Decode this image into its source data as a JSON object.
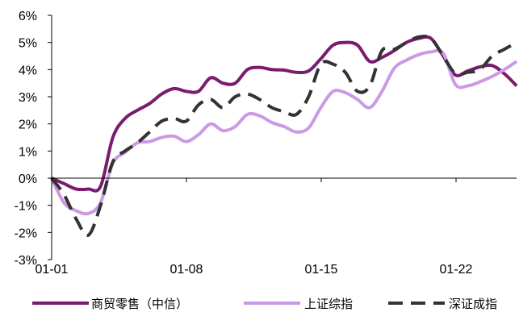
{
  "chart_data": {
    "type": "line",
    "title": "",
    "xlabel": "",
    "ylabel": "",
    "x_start": "01-01",
    "x_end": "01-25",
    "x_tick_labels": [
      "01-01",
      "01-08",
      "01-15",
      "01-22"
    ],
    "y_tick_labels": [
      "6%",
      "5%",
      "4%",
      "3%",
      "2%",
      "1%",
      "0%",
      "-1%",
      "-2%",
      "-3%"
    ],
    "ylim": [
      -3,
      6
    ],
    "y_unit": "%",
    "grid": false,
    "legend_position": "bottom",
    "series": [
      {
        "name": "商贸零售（中信）",
        "color": "#7B1B6E",
        "style": "solid",
        "points": [
          [
            "01-01",
            0.0
          ],
          [
            "01-01",
            -0.2
          ],
          [
            "01-02",
            -0.4
          ],
          [
            "01-02",
            -0.4
          ],
          [
            "01-03",
            -0.3
          ],
          [
            "01-03",
            1.5
          ],
          [
            "01-04",
            2.2
          ],
          [
            "01-04",
            2.5
          ],
          [
            "01-05",
            2.75
          ],
          [
            "01-06",
            3.1
          ],
          [
            "01-06",
            3.3
          ],
          [
            "01-07",
            3.2
          ],
          [
            "01-07",
            3.2
          ],
          [
            "01-08",
            3.7
          ],
          [
            "01-08",
            3.5
          ],
          [
            "01-09",
            3.5
          ],
          [
            "01-09",
            4.0
          ],
          [
            "01-10",
            4.08
          ],
          [
            "01-11",
            4.0
          ],
          [
            "01-11",
            3.98
          ],
          [
            "01-12",
            3.9
          ],
          [
            "01-13",
            3.95
          ],
          [
            "01-13",
            4.4
          ],
          [
            "01-14",
            4.9
          ],
          [
            "01-14",
            5.0
          ],
          [
            "01-15",
            4.9
          ],
          [
            "01-16",
            4.3
          ],
          [
            "01-17",
            4.45
          ],
          [
            "01-17",
            4.7
          ],
          [
            "01-18",
            5.0
          ],
          [
            "01-19",
            5.15
          ],
          [
            "01-20",
            5.15
          ],
          [
            "01-20",
            4.5
          ],
          [
            "01-21",
            3.8
          ],
          [
            "01-22",
            3.95
          ],
          [
            "01-22",
            4.1
          ],
          [
            "01-23",
            4.15
          ],
          [
            "01-23",
            3.85
          ],
          [
            "01-24",
            3.4
          ]
        ]
      },
      {
        "name": "上证综指",
        "color": "#CC99E6",
        "style": "solid",
        "points": [
          [
            "01-01",
            0.0
          ],
          [
            "01-01",
            -0.9
          ],
          [
            "01-02",
            -1.2
          ],
          [
            "01-02",
            -1.3
          ],
          [
            "01-03",
            -0.9
          ],
          [
            "01-03",
            0.55
          ],
          [
            "01-04",
            0.95
          ],
          [
            "01-04",
            1.3
          ],
          [
            "01-05",
            1.35
          ],
          [
            "01-06",
            1.5
          ],
          [
            "01-06",
            1.55
          ],
          [
            "01-07",
            1.35
          ],
          [
            "01-07",
            1.6
          ],
          [
            "01-08",
            2.0
          ],
          [
            "01-08",
            1.75
          ],
          [
            "01-09",
            1.9
          ],
          [
            "01-09",
            2.35
          ],
          [
            "01-10",
            2.3
          ],
          [
            "01-11",
            2.05
          ],
          [
            "01-11",
            1.9
          ],
          [
            "01-12",
            1.7
          ],
          [
            "01-13",
            1.85
          ],
          [
            "01-13",
            2.6
          ],
          [
            "01-14",
            3.2
          ],
          [
            "01-14",
            3.15
          ],
          [
            "01-15",
            2.9
          ],
          [
            "01-16",
            2.6
          ],
          [
            "01-17",
            3.2
          ],
          [
            "01-17",
            4.05
          ],
          [
            "01-18",
            4.35
          ],
          [
            "01-19",
            4.55
          ],
          [
            "01-20",
            4.65
          ],
          [
            "01-20",
            4.6
          ],
          [
            "01-21",
            3.45
          ],
          [
            "01-22",
            3.4
          ],
          [
            "01-22",
            3.55
          ],
          [
            "01-23",
            3.75
          ],
          [
            "01-23",
            4.0
          ],
          [
            "01-24",
            4.3
          ]
        ]
      },
      {
        "name": "深证成指",
        "color": "#333333",
        "style": "dashed",
        "points": [
          [
            "01-01",
            0.0
          ],
          [
            "01-01",
            -0.6
          ],
          [
            "01-02",
            -1.5
          ],
          [
            "01-02",
            -2.1
          ],
          [
            "01-03",
            -1.0
          ],
          [
            "01-03",
            0.6
          ],
          [
            "01-04",
            1.0
          ],
          [
            "01-04",
            1.3
          ],
          [
            "01-05",
            1.7
          ],
          [
            "01-06",
            2.1
          ],
          [
            "01-06",
            2.2
          ],
          [
            "01-07",
            2.1
          ],
          [
            "01-07",
            2.7
          ],
          [
            "01-08",
            2.9
          ],
          [
            "01-08",
            2.6
          ],
          [
            "01-09",
            3.0
          ],
          [
            "01-09",
            3.1
          ],
          [
            "01-10",
            2.9
          ],
          [
            "01-11",
            2.6
          ],
          [
            "01-11",
            2.45
          ],
          [
            "01-12",
            2.35
          ],
          [
            "01-13",
            3.0
          ],
          [
            "01-13",
            4.2
          ],
          [
            "01-14",
            4.2
          ],
          [
            "01-14",
            3.9
          ],
          [
            "01-15",
            3.2
          ],
          [
            "01-16",
            3.4
          ],
          [
            "01-17",
            4.7
          ],
          [
            "01-17",
            4.75
          ],
          [
            "01-18",
            5.0
          ],
          [
            "01-19",
            5.2
          ],
          [
            "01-20",
            5.15
          ],
          [
            "01-20",
            4.5
          ],
          [
            "01-21",
            3.85
          ],
          [
            "01-22",
            3.9
          ],
          [
            "01-22",
            4.0
          ],
          [
            "01-23",
            4.5
          ],
          [
            "01-23",
            4.75
          ],
          [
            "01-24",
            5.0
          ]
        ]
      }
    ]
  }
}
